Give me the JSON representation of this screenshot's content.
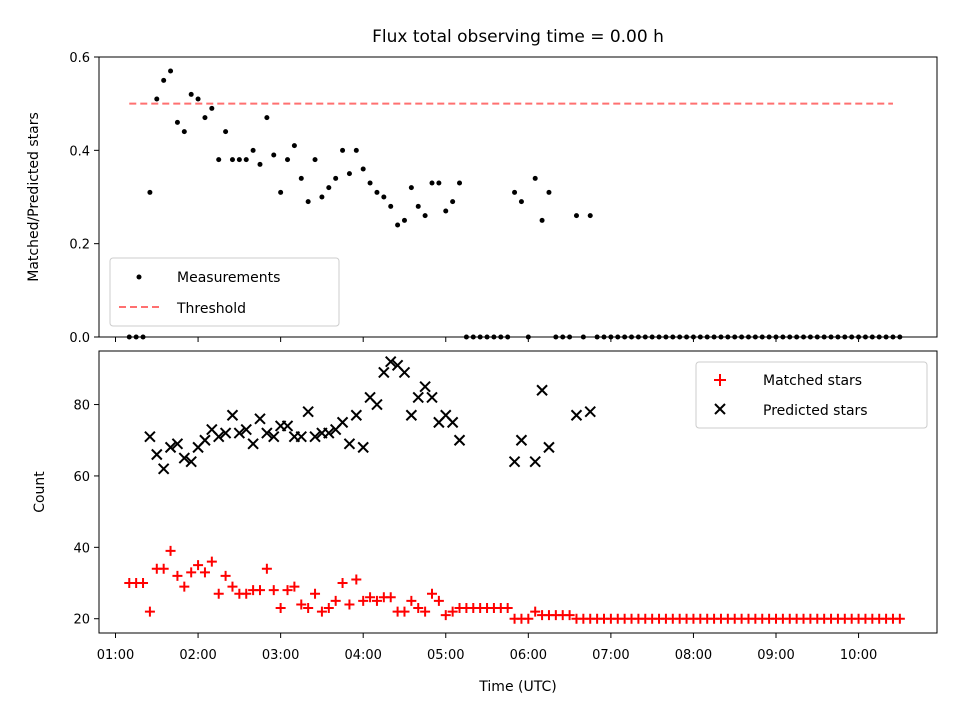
{
  "chart_data": [
    {
      "type": "scatter",
      "title": "Flux total observing time = 0.00 h",
      "ylabel": "Matched/Predicted stars",
      "ylim": [
        0,
        0.6
      ],
      "yticks": [
        "0.0",
        "0.2",
        "0.4",
        "0.6"
      ],
      "xlim": [
        "00:48",
        "10:57"
      ],
      "legend": "lower-left",
      "threshold": {
        "name": "Threshold",
        "y": 0.5,
        "x": [
          "01:10",
          "10:25"
        ],
        "color": "#ff7070"
      },
      "series": [
        {
          "name": "Measurements",
          "color": "#000000",
          "x": [
            "01:10",
            "01:15",
            "01:20",
            "01:25",
            "01:30",
            "01:35",
            "01:40",
            "01:45",
            "01:50",
            "01:55",
            "02:00",
            "02:05",
            "02:10",
            "02:15",
            "02:20",
            "02:25",
            "02:30",
            "02:35",
            "02:40",
            "02:45",
            "02:50",
            "02:55",
            "03:00",
            "03:05",
            "03:10",
            "03:15",
            "03:20",
            "03:25",
            "03:30",
            "03:35",
            "03:40",
            "03:45",
            "03:50",
            "03:55",
            "04:00",
            "04:05",
            "04:10",
            "04:15",
            "04:20",
            "04:25",
            "04:30",
            "04:35",
            "04:40",
            "04:45",
            "04:50",
            "04:55",
            "05:00",
            "05:05",
            "05:10",
            "05:15",
            "05:20",
            "05:25",
            "05:30",
            "05:35",
            "05:40",
            "05:45",
            "05:50",
            "05:55",
            "06:00",
            "06:05",
            "06:10",
            "06:15",
            "06:20",
            "06:25",
            "06:30",
            "06:35",
            "06:40",
            "06:45",
            "06:50",
            "06:55",
            "07:00",
            "07:05",
            "07:10",
            "07:15",
            "07:20",
            "07:25",
            "07:30",
            "07:35",
            "07:40",
            "07:45",
            "07:50",
            "07:55",
            "08:00",
            "08:05",
            "08:10",
            "08:15",
            "08:20",
            "08:25",
            "08:30",
            "08:35",
            "08:40",
            "08:45",
            "08:50",
            "08:55",
            "09:00",
            "09:05",
            "09:10",
            "09:15",
            "09:20",
            "09:25",
            "09:30",
            "09:35",
            "09:40",
            "09:45",
            "09:50",
            "09:55",
            "10:00",
            "10:05",
            "10:10",
            "10:15",
            "10:20",
            "10:25",
            "10:30"
          ],
          "y": [
            0,
            0,
            0,
            0.31,
            0.51,
            0.55,
            0.57,
            0.46,
            0.44,
            0.52,
            0.51,
            0.47,
            0.49,
            0.38,
            0.44,
            0.38,
            0.38,
            0.38,
            0.4,
            0.37,
            0.47,
            0.39,
            0.31,
            0.38,
            0.41,
            0.34,
            0.29,
            0.38,
            0.3,
            0.32,
            0.34,
            0.4,
            0.35,
            0.4,
            0.36,
            0.33,
            0.31,
            0.3,
            0.28,
            0.24,
            0.25,
            0.32,
            0.28,
            0.26,
            0.33,
            0.33,
            0.27,
            0.29,
            0.33,
            0,
            0,
            0,
            0,
            0,
            0,
            0,
            0.31,
            0.29,
            0,
            0.34,
            0.25,
            0.31,
            0,
            0,
            0,
            0.26,
            0,
            0.26,
            0,
            0,
            0,
            0,
            0,
            0,
            0,
            0,
            0,
            0,
            0,
            0,
            0,
            0,
            0,
            0,
            0,
            0,
            0,
            0,
            0,
            0,
            0,
            0,
            0,
            0,
            0,
            0,
            0,
            0,
            0,
            0,
            0,
            0,
            0,
            0,
            0,
            0,
            0,
            0,
            0,
            0,
            0,
            0,
            0
          ]
        }
      ]
    },
    {
      "type": "scatter",
      "xlabel": "Time (UTC)",
      "ylabel": "Count",
      "ylim": [
        16,
        95
      ],
      "yticks": [
        "20",
        "40",
        "60",
        "80"
      ],
      "xlim": [
        "00:48",
        "10:57"
      ],
      "xticks": [
        "01:00",
        "02:00",
        "03:00",
        "04:00",
        "05:00",
        "06:00",
        "07:00",
        "08:00",
        "09:00",
        "10:00"
      ],
      "legend": "upper-right",
      "series": [
        {
          "name": "Matched stars",
          "color": "#ff0000",
          "marker": "plus",
          "x": [
            "01:10",
            "01:15",
            "01:20",
            "01:25",
            "01:30",
            "01:35",
            "01:40",
            "01:45",
            "01:50",
            "01:55",
            "02:00",
            "02:05",
            "02:10",
            "02:15",
            "02:20",
            "02:25",
            "02:30",
            "02:35",
            "02:40",
            "02:45",
            "02:50",
            "02:55",
            "03:00",
            "03:05",
            "03:10",
            "03:15",
            "03:20",
            "03:25",
            "03:30",
            "03:35",
            "03:40",
            "03:45",
            "03:50",
            "03:55",
            "04:00",
            "04:05",
            "04:10",
            "04:15",
            "04:20",
            "04:25",
            "04:30",
            "04:35",
            "04:40",
            "04:45",
            "04:50",
            "04:55",
            "05:00",
            "05:05",
            "05:10",
            "05:15",
            "05:20",
            "05:25",
            "05:30",
            "05:35",
            "05:40",
            "05:45",
            "05:50",
            "05:55",
            "06:00",
            "06:05",
            "06:10",
            "06:15",
            "06:20",
            "06:25",
            "06:30",
            "06:35",
            "06:40",
            "06:45",
            "06:50",
            "06:55",
            "07:00",
            "07:05",
            "07:10",
            "07:15",
            "07:20",
            "07:25",
            "07:30",
            "07:35",
            "07:40",
            "07:45",
            "07:50",
            "07:55",
            "08:00",
            "08:05",
            "08:10",
            "08:15",
            "08:20",
            "08:25",
            "08:30",
            "08:35",
            "08:40",
            "08:45",
            "08:50",
            "08:55",
            "09:00",
            "09:05",
            "09:10",
            "09:15",
            "09:20",
            "09:25",
            "09:30",
            "09:35",
            "09:40",
            "09:45",
            "09:50",
            "09:55",
            "10:00",
            "10:05",
            "10:10",
            "10:15",
            "10:20",
            "10:25",
            "10:30"
          ],
          "y": [
            30,
            30,
            30,
            22,
            34,
            34,
            39,
            32,
            29,
            33,
            35,
            33,
            36,
            27,
            32,
            29,
            27,
            27,
            28,
            28,
            34,
            28,
            23,
            28,
            29,
            24,
            23,
            27,
            22,
            23,
            25,
            30,
            24,
            31,
            25,
            26,
            25,
            26,
            26,
            22,
            22,
            25,
            23,
            22,
            27,
            25,
            21,
            22,
            23,
            23,
            23,
            23,
            23,
            23,
            23,
            23,
            20,
            20,
            20,
            22,
            21,
            21,
            21,
            21,
            21,
            20,
            20,
            20,
            20,
            20,
            20,
            20,
            20,
            20,
            20,
            20,
            20,
            20,
            20,
            20,
            20,
            20,
            20,
            20,
            20,
            20,
            20,
            20,
            20,
            20,
            20,
            20,
            20,
            20,
            20,
            20,
            20,
            20,
            20,
            20,
            20,
            20,
            20,
            20,
            20,
            20,
            20,
            20,
            20,
            20,
            20,
            20,
            20
          ]
        },
        {
          "name": "Predicted stars",
          "color": "#000000",
          "marker": "x",
          "x": [
            "01:25",
            "01:30",
            "01:35",
            "01:40",
            "01:45",
            "01:50",
            "01:55",
            "02:00",
            "02:05",
            "02:10",
            "02:15",
            "02:20",
            "02:25",
            "02:30",
            "02:35",
            "02:40",
            "02:45",
            "02:50",
            "02:55",
            "03:00",
            "03:05",
            "03:10",
            "03:15",
            "03:20",
            "03:25",
            "03:30",
            "03:35",
            "03:40",
            "03:45",
            "03:50",
            "03:55",
            "04:00",
            "04:05",
            "04:10",
            "04:15",
            "04:20",
            "04:25",
            "04:30",
            "04:35",
            "04:40",
            "04:45",
            "04:50",
            "04:55",
            "05:00",
            "05:05",
            "05:10",
            "05:50",
            "05:55",
            "06:05",
            "06:10",
            "06:15",
            "06:35",
            "06:45"
          ],
          "y": [
            71,
            66,
            62,
            68,
            69,
            65,
            64,
            68,
            70,
            73,
            71,
            72,
            77,
            72,
            73,
            69,
            76,
            72,
            71,
            74,
            74,
            71,
            71,
            78,
            71,
            72,
            72,
            73,
            75,
            69,
            77,
            68,
            82,
            80,
            89,
            92,
            91,
            89,
            77,
            82,
            85,
            82,
            75,
            77,
            75,
            70,
            64,
            70,
            64,
            84,
            68,
            77,
            78
          ]
        }
      ]
    }
  ]
}
